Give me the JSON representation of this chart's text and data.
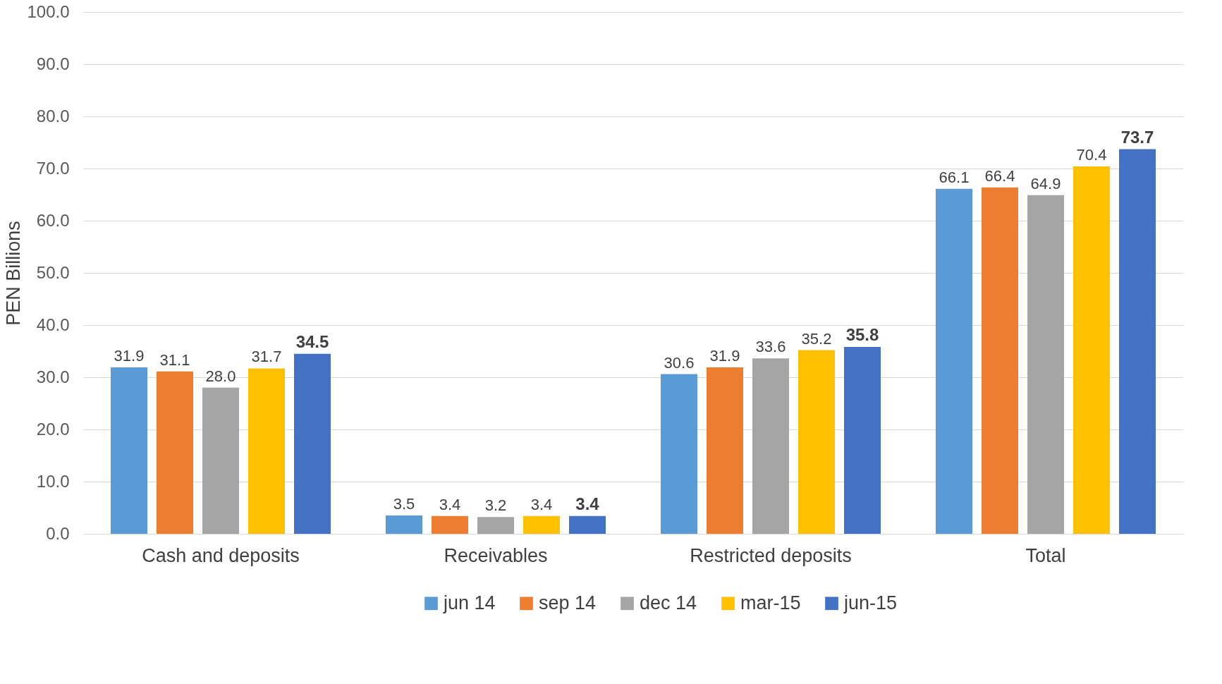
{
  "chart_data": {
    "type": "bar",
    "ylabel": "PEN Billions",
    "categories": [
      "Cash and deposits",
      "Receivables",
      "Restricted deposits",
      "Total"
    ],
    "series": [
      {
        "name": "jun 14",
        "color": "#5b9bd5",
        "values": [
          31.9,
          3.5,
          30.6,
          66.1
        ],
        "value_labels": [
          "31.9",
          "3.5",
          "30.6",
          "66.1"
        ]
      },
      {
        "name": "sep 14",
        "color": "#ed7d31",
        "values": [
          31.1,
          3.4,
          31.9,
          66.4
        ],
        "value_labels": [
          "31.1",
          "3.4",
          "31.9",
          "66.4"
        ]
      },
      {
        "name": "dec 14",
        "color": "#a5a5a5",
        "values": [
          28.0,
          3.2,
          33.6,
          64.9
        ],
        "value_labels": [
          "28.0",
          "3.2",
          "33.6",
          "64.9"
        ]
      },
      {
        "name": "mar-15",
        "color": "#ffc000",
        "values": [
          31.7,
          3.4,
          35.2,
          70.4
        ],
        "value_labels": [
          "31.7",
          "3.4",
          "35.2",
          "70.4"
        ]
      },
      {
        "name": "jun-15",
        "color": "#4472c4",
        "values": [
          34.5,
          3.4,
          35.8,
          73.7
        ],
        "value_labels": [
          "34.5",
          "3.4",
          "35.8",
          "73.7"
        ]
      }
    ],
    "ylim": [
      0,
      100
    ],
    "yticks": [
      {
        "value": 0,
        "label": "0.0"
      },
      {
        "value": 10,
        "label": "10.0"
      },
      {
        "value": 20,
        "label": "20.0"
      },
      {
        "value": 30,
        "label": "30.0"
      },
      {
        "value": 40,
        "label": "40.0"
      },
      {
        "value": 50,
        "label": "50.0"
      },
      {
        "value": 60,
        "label": "60.0"
      },
      {
        "value": 70,
        "label": "70.0"
      },
      {
        "value": 80,
        "label": "80.0"
      },
      {
        "value": 90,
        "label": "90.0"
      },
      {
        "value": 100,
        "label": "100.0"
      }
    ],
    "grid": "y",
    "legend": "bottom"
  }
}
